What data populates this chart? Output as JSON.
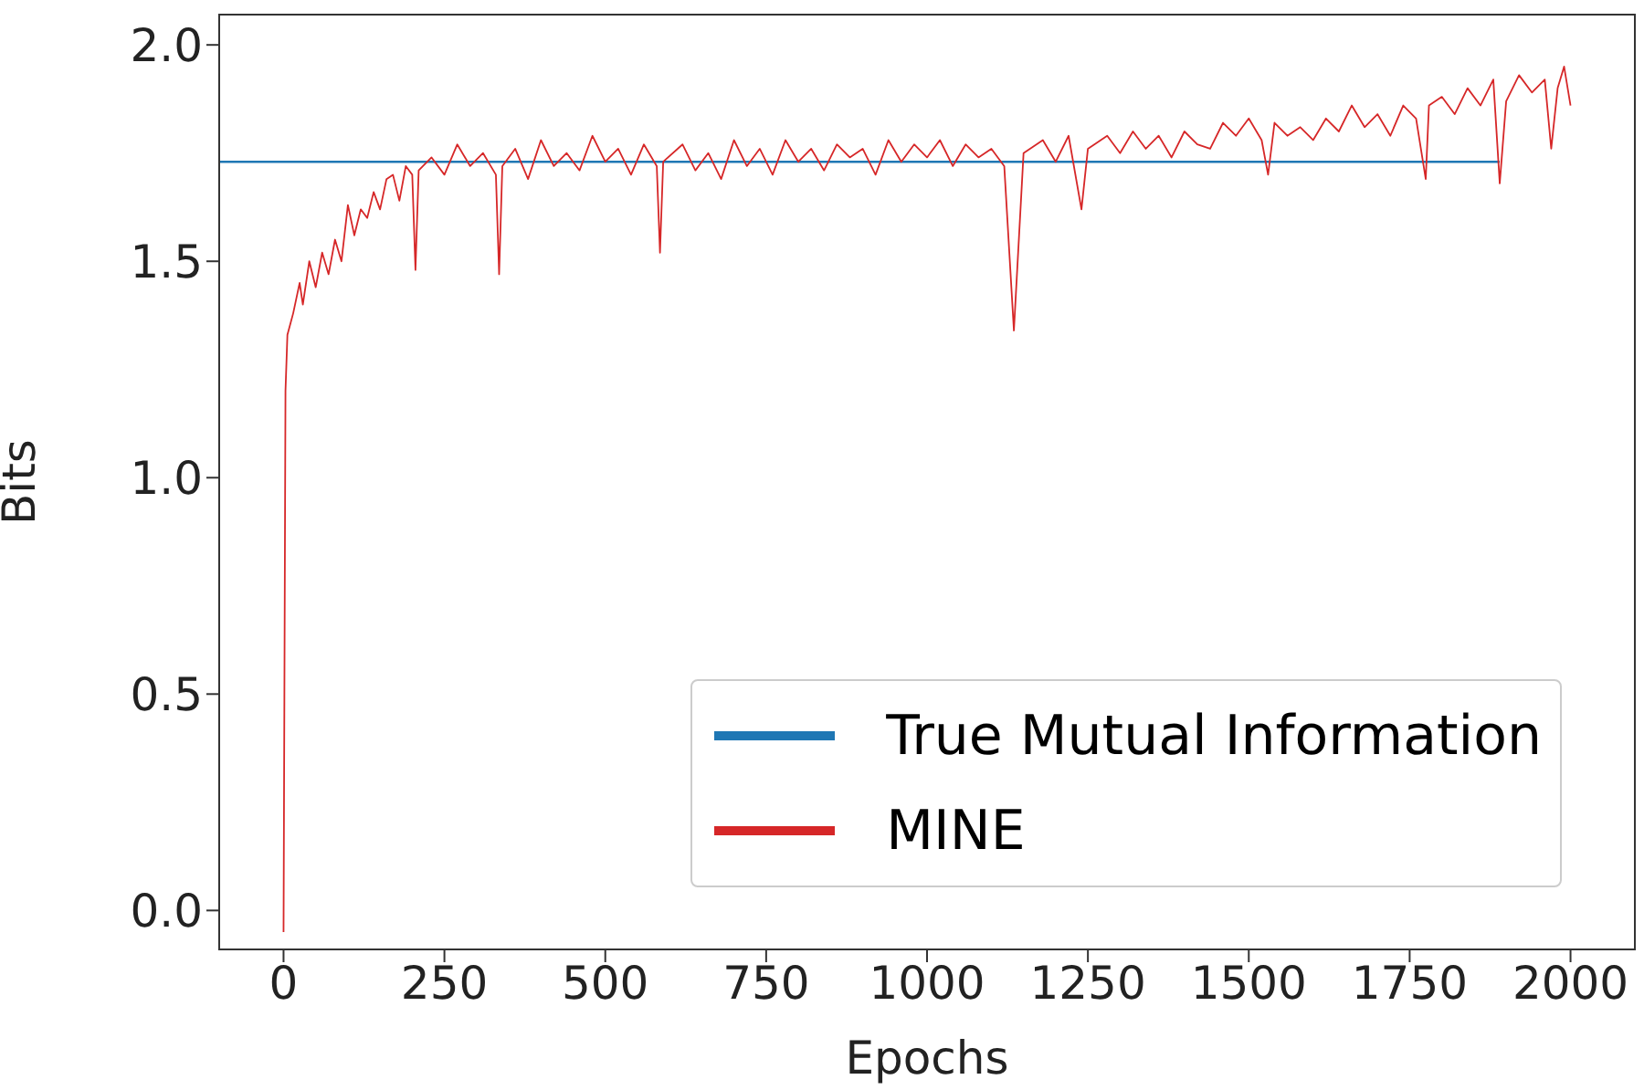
{
  "chart_data": {
    "type": "line",
    "xlabel": "Epochs",
    "ylabel": "Bits",
    "xlim": [
      -100,
      2100
    ],
    "xticks": [
      0,
      250,
      500,
      750,
      1000,
      1250,
      1500,
      1750,
      2000
    ],
    "ylim": [
      -0.09,
      2.07
    ],
    "yticks": [
      {
        "value": 0,
        "label": "0.0"
      },
      {
        "value": 0.5,
        "label": "0.5"
      },
      {
        "value": 1,
        "label": "1.0"
      },
      {
        "value": 1.5,
        "label": "1.5"
      },
      {
        "value": 2,
        "label": "2.0"
      }
    ],
    "legend": "bottom right",
    "marker": "none",
    "line_style": "solid",
    "series": [
      {
        "name": "True Mutual Information",
        "color": "#1f77b4",
        "x": [
          -100,
          1890
        ],
        "values": [
          1.73,
          1.73
        ]
      },
      {
        "name": "MINE",
        "color": "#d62728",
        "x": [
          0,
          3,
          6,
          15,
          25,
          30,
          40,
          50,
          60,
          70,
          80,
          90,
          100,
          110,
          120,
          130,
          140,
          150,
          160,
          170,
          180,
          190,
          200,
          205,
          210,
          230,
          250,
          270,
          290,
          310,
          330,
          335,
          340,
          360,
          380,
          400,
          420,
          440,
          460,
          480,
          500,
          520,
          540,
          560,
          580,
          585,
          590,
          620,
          640,
          660,
          680,
          700,
          720,
          740,
          760,
          780,
          800,
          820,
          840,
          860,
          880,
          900,
          920,
          940,
          960,
          980,
          1000,
          1020,
          1040,
          1060,
          1080,
          1100,
          1120,
          1135,
          1150,
          1180,
          1200,
          1220,
          1240,
          1250,
          1280,
          1300,
          1320,
          1340,
          1360,
          1380,
          1400,
          1420,
          1440,
          1460,
          1480,
          1500,
          1520,
          1530,
          1540,
          1560,
          1580,
          1600,
          1620,
          1640,
          1660,
          1680,
          1700,
          1720,
          1740,
          1760,
          1775,
          1780,
          1800,
          1820,
          1840,
          1860,
          1880,
          1890,
          1900,
          1920,
          1940,
          1960,
          1970,
          1980,
          1990,
          2000
        ],
        "values": [
          -0.05,
          1.2,
          1.33,
          1.38,
          1.45,
          1.4,
          1.5,
          1.44,
          1.52,
          1.47,
          1.55,
          1.5,
          1.63,
          1.56,
          1.62,
          1.6,
          1.66,
          1.62,
          1.69,
          1.7,
          1.64,
          1.72,
          1.7,
          1.48,
          1.71,
          1.74,
          1.7,
          1.77,
          1.72,
          1.75,
          1.7,
          1.47,
          1.72,
          1.76,
          1.69,
          1.78,
          1.72,
          1.75,
          1.71,
          1.79,
          1.73,
          1.76,
          1.7,
          1.77,
          1.72,
          1.52,
          1.73,
          1.77,
          1.71,
          1.75,
          1.69,
          1.78,
          1.72,
          1.76,
          1.7,
          1.78,
          1.73,
          1.76,
          1.71,
          1.77,
          1.74,
          1.76,
          1.7,
          1.78,
          1.73,
          1.77,
          1.74,
          1.78,
          1.72,
          1.77,
          1.74,
          1.76,
          1.72,
          1.34,
          1.75,
          1.78,
          1.73,
          1.79,
          1.62,
          1.76,
          1.79,
          1.75,
          1.8,
          1.76,
          1.79,
          1.74,
          1.8,
          1.77,
          1.76,
          1.82,
          1.79,
          1.83,
          1.78,
          1.7,
          1.82,
          1.79,
          1.81,
          1.78,
          1.83,
          1.8,
          1.86,
          1.81,
          1.84,
          1.79,
          1.86,
          1.83,
          1.69,
          1.86,
          1.88,
          1.84,
          1.9,
          1.86,
          1.92,
          1.68,
          1.87,
          1.93,
          1.89,
          1.92,
          1.76,
          1.9,
          1.95,
          1.86
        ]
      }
    ]
  }
}
